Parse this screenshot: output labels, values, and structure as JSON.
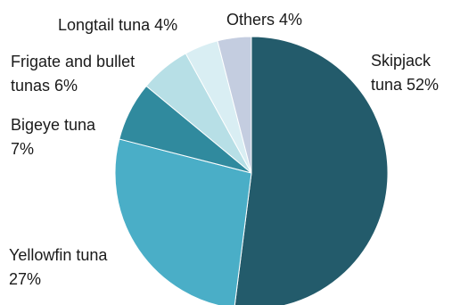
{
  "chart_data": {
    "type": "pie",
    "title": "",
    "slices": [
      {
        "label": "Skipjack tuna 52%",
        "label_lines": [
          "Skipjack",
          "tuna 52%"
        ],
        "value": 52,
        "color": "#235b6b"
      },
      {
        "label": "Yellowfin tuna 27%",
        "label_lines": [
          "Yellowfin tuna",
          "27%"
        ],
        "value": 27,
        "color": "#4aaec7"
      },
      {
        "label": "Bigeye tuna 7%",
        "label_lines": [
          "Bigeye tuna",
          "7%"
        ],
        "value": 7,
        "color": "#308a9e"
      },
      {
        "label": "Frigate and bullet tunas 6%",
        "label_lines": [
          "Frigate and bullet",
          "tunas 6%"
        ],
        "value": 6,
        "color": "#b7dfe6"
      },
      {
        "label": "Longtail tuna 4%",
        "label_lines": [
          "Longtail tuna 4%"
        ],
        "value": 4,
        "color": "#d9eef3"
      },
      {
        "label": "Others 4%",
        "label_lines": [
          "Others 4%"
        ],
        "value": 4,
        "color": "#c4cde0"
      }
    ],
    "start_angle_deg": 0,
    "direction": "clockwise"
  }
}
